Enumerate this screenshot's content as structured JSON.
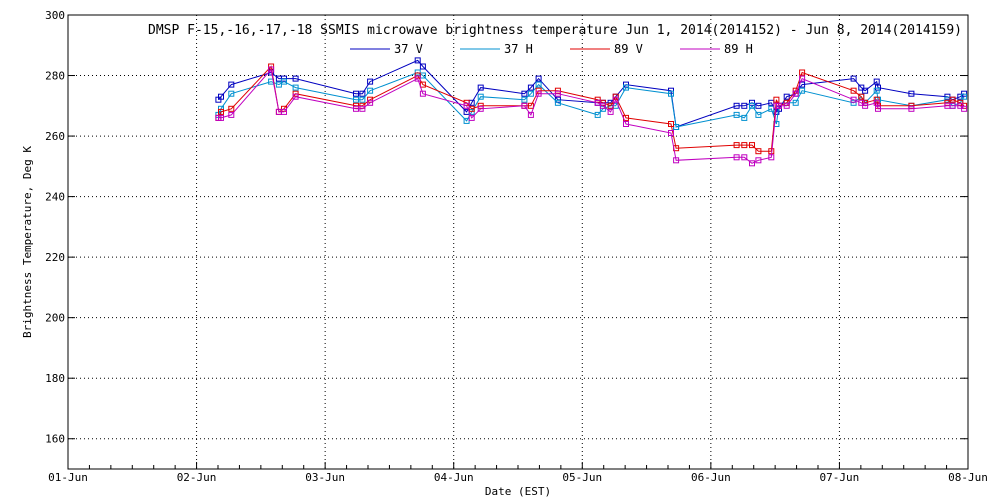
{
  "chart_data": {
    "type": "line",
    "title": "DMSP F-15,-16,-17,-18 SSMIS microwave brightness temperature Jun  1, 2014(2014152) - Jun  8, 2014(2014159)",
    "xlabel": "Date (EST)",
    "ylabel": "Brightness Temperature, Deg K",
    "xlim": [
      0,
      7
    ],
    "ylim": [
      150,
      300
    ],
    "y_ticks": [
      160,
      180,
      200,
      220,
      240,
      260,
      280,
      300
    ],
    "x_ticks": [
      0,
      1,
      2,
      3,
      4,
      5,
      6,
      7
    ],
    "x_tick_labels": [
      "01-Jun",
      "02-Jun",
      "03-Jun",
      "04-Jun",
      "05-Jun",
      "06-Jun",
      "07-Jun",
      "08-Jun"
    ],
    "grid": true,
    "legend_position": "top",
    "x": [
      1.17,
      1.19,
      1.27,
      1.58,
      1.64,
      1.68,
      1.77,
      2.24,
      2.29,
      2.35,
      2.72,
      2.76,
      3.1,
      3.14,
      3.21,
      3.55,
      3.6,
      3.66,
      3.81,
      4.12,
      4.16,
      4.22,
      4.26,
      4.34,
      4.69,
      4.73,
      5.2,
      5.26,
      5.32,
      5.37,
      5.47,
      5.51,
      5.53,
      5.59,
      5.66,
      5.71,
      6.11,
      6.17,
      6.2,
      6.29,
      6.3,
      6.56,
      6.84,
      6.88,
      6.94,
      6.97
    ],
    "series": [
      {
        "name": "37 V",
        "color": "#0000c0",
        "values": [
          272,
          273,
          277,
          281,
          279,
          279,
          279,
          274,
          274,
          278,
          285,
          283,
          268,
          271,
          276,
          274,
          276,
          279,
          272,
          271,
          271,
          271,
          273,
          277,
          275,
          263,
          270,
          270,
          271,
          270,
          271,
          268,
          269,
          273,
          274,
          277,
          279,
          276,
          275,
          278,
          276,
          274,
          273,
          272,
          273,
          274
        ]
      },
      {
        "name": "37 H",
        "color": "#0090d0",
        "values": [
          267,
          269,
          274,
          278,
          277,
          278,
          276,
          272,
          272,
          275,
          281,
          280,
          265,
          268,
          273,
          272,
          274,
          277,
          271,
          267,
          269,
          270,
          270,
          276,
          274,
          263,
          267,
          266,
          270,
          267,
          269,
          264,
          270,
          271,
          271,
          275,
          271,
          273,
          271,
          275,
          272,
          270,
          272,
          270,
          271,
          273
        ]
      },
      {
        "name": "89 V",
        "color": "#e00000",
        "values": [
          266,
          268,
          269,
          283,
          268,
          269,
          274,
          270,
          270,
          272,
          280,
          277,
          271,
          269,
          270,
          270,
          270,
          275,
          275,
          272,
          271,
          270,
          273,
          266,
          264,
          256,
          257,
          257,
          257,
          255,
          255,
          272,
          270,
          271,
          275,
          281,
          275,
          273,
          271,
          272,
          270,
          270,
          271,
          272,
          271,
          270
        ]
      },
      {
        "name": "89 H",
        "color": "#c000c0",
        "values": [
          266,
          266,
          267,
          282,
          268,
          268,
          273,
          269,
          269,
          271,
          279,
          274,
          270,
          266,
          269,
          270,
          267,
          274,
          274,
          271,
          270,
          268,
          272,
          264,
          261,
          252,
          253,
          253,
          251,
          252,
          253,
          270,
          270,
          270,
          274,
          279,
          272,
          271,
          270,
          271,
          269,
          269,
          270,
          270,
          270,
          269
        ]
      }
    ]
  }
}
